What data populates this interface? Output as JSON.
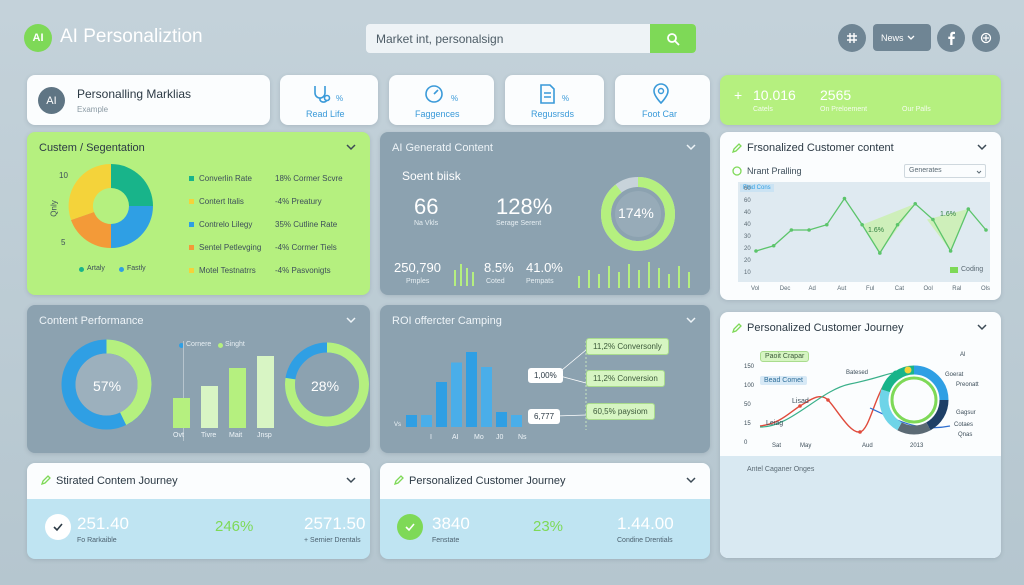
{
  "header": {
    "logo_text": "AI",
    "app_title": "AI Personaliztion",
    "search_value": "Market int, personalsign",
    "news_label": "News",
    "action_icons": [
      "hash-icon",
      "chevron-down-icon",
      "facebook-icon",
      "share-icon"
    ]
  },
  "profile": {
    "avatar": "AI",
    "title": "Personalling Marklias",
    "subtitle": "Example"
  },
  "quick": [
    {
      "icon": "stethoscope-icon",
      "label": "Read Life",
      "pct": "%"
    },
    {
      "icon": "gauge-icon",
      "label": "Faggences",
      "pct": "%"
    },
    {
      "icon": "document-icon",
      "label": "Regusrsds",
      "pct": "%"
    },
    {
      "icon": "location-pin-icon",
      "label": "Foot Car",
      "pct": ""
    }
  ],
  "stats": {
    "plus": "+",
    "a_val": "10.016",
    "a_lbl": "Catels",
    "b_val": "2565",
    "b_lbl": "On Preloement",
    "c_lbl": "Our Palls"
  },
  "seg": {
    "title": "Custem / Segentation",
    "y_top": "10",
    "y_mid": "5",
    "y_axis": "Qnly",
    "legend_a": "Artaly",
    "legend_b": "Fastly",
    "rows": [
      {
        "name": "Converlin Rate",
        "value": "18% Cormer Scvre",
        "color": "#18b48a"
      },
      {
        "name": "Contert Italis",
        "value": "-4% Preatury",
        "color": "#f4d33a"
      },
      {
        "name": "Contrelo Lilegy",
        "value": "35% Cutline Rate",
        "color": "#2f9fe4"
      },
      {
        "name": "Sentel Petlevging",
        "value": "-4% Cormer Tiels",
        "color": "#f39a38"
      },
      {
        "name": "Motel Testnatrrs",
        "value": "-4% Pasvonigts",
        "color": "#f4d33a"
      }
    ]
  },
  "aigen": {
    "title": "AI Generatd Content",
    "metric_title": "Soent biisk",
    "m1_val": "66",
    "m1_lbl": "Na Vkls",
    "m2_val": "128%",
    "m2_lbl": "Serage Serent",
    "donut_val": "174%",
    "b1_val": "250,790",
    "b1_lbl": "Pmples",
    "b2_val": "8.5%",
    "b2_lbl": "Coted",
    "b3_val": "41.0%",
    "b3_lbl": "Pempats"
  },
  "pcc": {
    "title": "Frsonalized Customer content",
    "sub": "Nrant Pralling",
    "select": "Generates",
    "inner": "Ftnd Cons",
    "peak1": "1.6%",
    "peak2": "1.6%",
    "legend": "Coding",
    "y_ticks": [
      "60",
      "60",
      "40",
      "40",
      "30",
      "20",
      "20",
      "10"
    ],
    "x_ticks": [
      "Vol",
      "Dec",
      "Ad",
      "Aut",
      "Ful",
      "Cat",
      "Ool",
      "Ral",
      "Ols"
    ],
    "values": [
      2,
      2.5,
      4,
      4,
      4.5,
      7,
      4.5,
      1.8,
      4.5,
      6.5,
      5,
      2,
      6,
      4
    ]
  },
  "perf": {
    "title": "Content Performance",
    "legend_a": "Cornere",
    "legend_b": "Singht",
    "donut1_val": "57%",
    "donut2_val": "28%",
    "bars": [
      {
        "label": "Ovt",
        "value": 30
      },
      {
        "label": "Tivre",
        "value": 42
      },
      {
        "label": "Mait",
        "value": 60
      },
      {
        "label": "Jnsp",
        "value": 72
      }
    ]
  },
  "roi": {
    "title": "ROI offercter Camping",
    "y_lbl": "Vs",
    "x_ticks": [
      "I",
      "AI",
      "Mo",
      "J0",
      "Ns"
    ],
    "bars": [
      8,
      8,
      30,
      43,
      50,
      40,
      10,
      8
    ],
    "callout1": "1,00%",
    "callout2": "6,777",
    "pill1": "11,2% Conversonly",
    "pill2": "11,2% Conversion",
    "pill3": "60,5% paysiom"
  },
  "journey": {
    "title": "Personalized Customer Journey",
    "lbl1": "Paoit Crapar",
    "lbl2": "Bead Comet",
    "y_ticks": [
      "150",
      "100",
      "50",
      "15",
      "0"
    ],
    "x_ticks": [
      "Sat",
      "May",
      "Aud",
      "2013"
    ],
    "line_a": "Lisad",
    "line_b": "Leiag",
    "legend": [
      "Al",
      "Goerat",
      "Preonatt",
      "Gagsur",
      "Cotaes",
      "Qnas"
    ],
    "inner_lbl": "Batesed",
    "footer": "Antel Caganer Onges"
  },
  "b1": {
    "title": "Stirated Contem Journey",
    "v1": "251.40",
    "l1": "Fo Rarkaible",
    "v2": "246%",
    "v3": "2571.50",
    "l3": "+ Sernier Drentals"
  },
  "b2": {
    "title": "Personalized Customer Journey",
    "v1": "3840",
    "l1": "Fenstate",
    "v2": "23%",
    "v3": "1.44.00",
    "l3": "Condine Drentials"
  },
  "colors": {
    "green": "#7ed957",
    "slate": "#8ca2b0",
    "accent": "#b5f07f",
    "blue": "#2f9fe4"
  }
}
